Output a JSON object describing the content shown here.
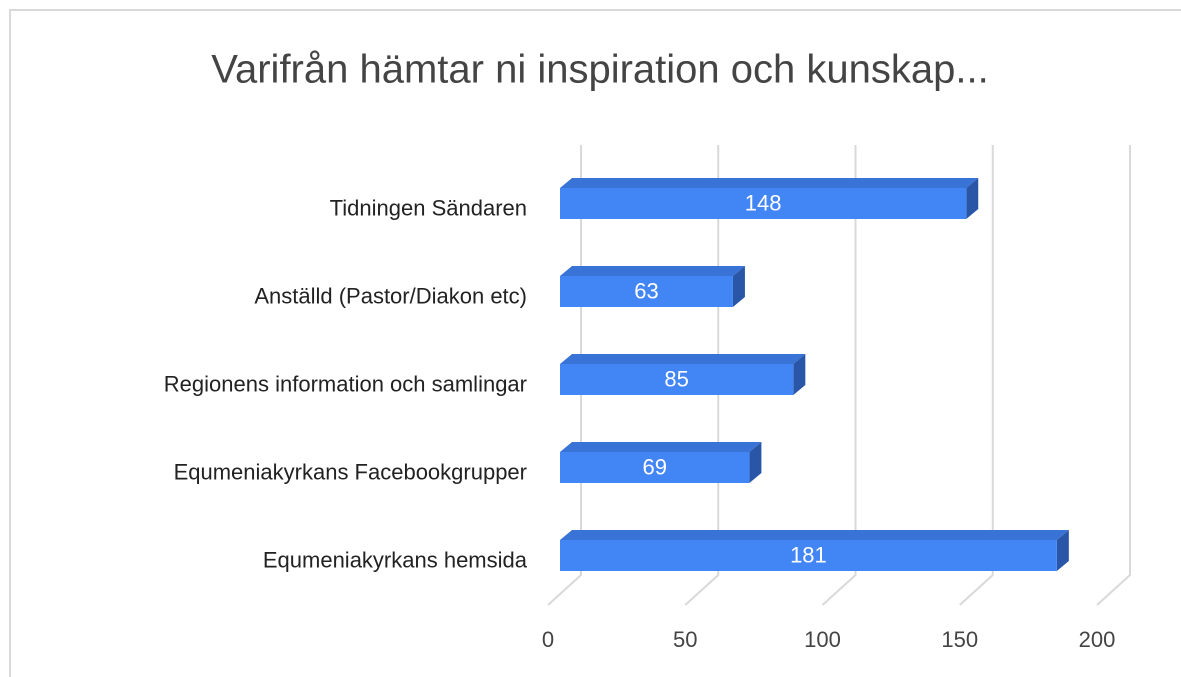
{
  "chart_data": {
    "type": "bar",
    "orientation": "horizontal",
    "title": "Varifrån hämtar ni inspiration och kunskap...",
    "categories": [
      "Tidningen Sändaren",
      "Anställd (Pastor/Diakon etc)",
      "Regionens information och samlingar",
      "Equmeniakyrkans Facebookgrupper",
      "Equmeniakyrkans hemsida"
    ],
    "values": [
      148,
      63,
      85,
      69,
      181
    ],
    "color": "#4285f4",
    "xlim": [
      0,
      200
    ],
    "xticks": [
      0,
      50,
      100,
      150,
      200
    ],
    "grid": true
  }
}
